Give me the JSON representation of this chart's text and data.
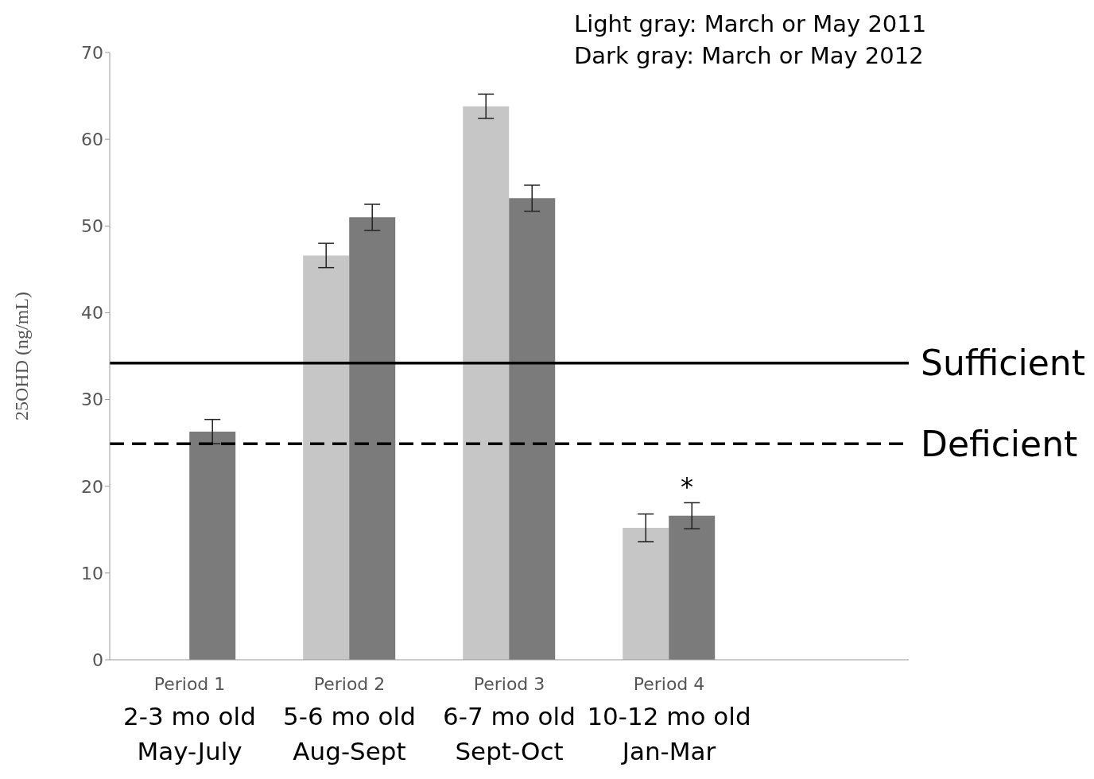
{
  "chart_data": {
    "type": "bar",
    "ylabel": "25OHD (ng/mL)",
    "categories": [
      "Period 1\n2-3 mo old\nMay-July",
      "Period 2\n5-6 mo old\nAug-Sept",
      "Period 3\n6-7 mo old\nSept-Oct",
      "Period 4\n10-12 mo old\nJan-Mar",
      null
    ],
    "series": [
      {
        "color": "#c6c6c6",
        "values": [
          null,
          46.6,
          63.8,
          15.2,
          null
        ],
        "errors": [
          null,
          1.4,
          1.4,
          1.6,
          null
        ]
      },
      {
        "color": "#7b7b7b",
        "values": [
          26.3,
          51.0,
          53.2,
          16.6,
          null
        ],
        "errors": [
          1.4,
          1.5,
          1.5,
          1.5,
          null
        ]
      }
    ],
    "ylim": [
      0,
      70
    ],
    "yticks": [
      0,
      10,
      20,
      30,
      40,
      50,
      60,
      70
    ],
    "ref_lines": [
      {
        "axis": "y",
        "value": 34.2,
        "label": "Sufficient",
        "color": "#000000",
        "line_style": "solid"
      },
      {
        "axis": "y",
        "value": 24.9,
        "label": "Deficient",
        "color": "#000000",
        "line_style": "dashed"
      }
    ],
    "annotations": [
      "Light gray: March or May 2011",
      "Dark gray: March or May 2012",
      "*"
    ]
  }
}
